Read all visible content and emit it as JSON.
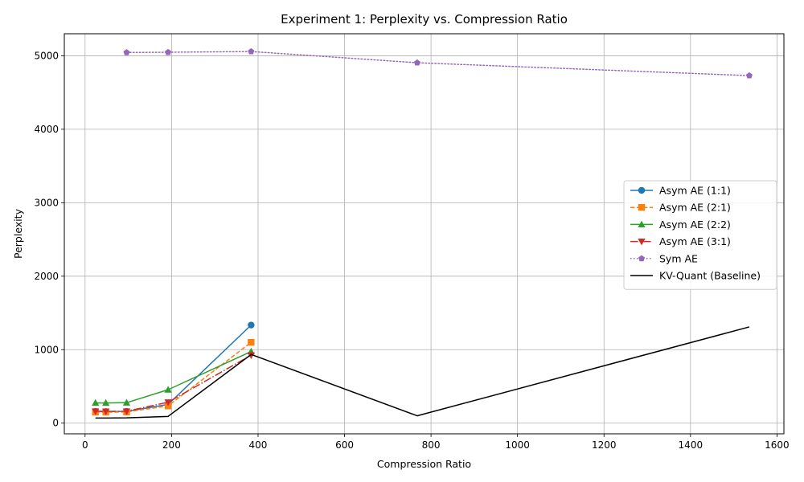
{
  "chart_data": {
    "type": "line",
    "title": "Experiment 1: Perplexity vs. Compression Ratio",
    "xlabel": "Compression Ratio",
    "ylabel": "Perplexity",
    "xlim": [
      -48,
      1616
    ],
    "ylim": [
      -145,
      5300
    ],
    "xticks": [
      0,
      200,
      400,
      600,
      800,
      1000,
      1200,
      1400,
      1600
    ],
    "yticks": [
      0,
      1000,
      2000,
      3000,
      4000,
      5000
    ],
    "grid": true,
    "legend_position": "center-right",
    "series": [
      {
        "name": "Asym AE (1:1)",
        "color": "#1f77b4",
        "line_style": "solid",
        "marker": "circle",
        "x": [
          24,
          48,
          96,
          192,
          384
        ],
        "y": [
          160,
          158,
          160,
          255,
          1335
        ]
      },
      {
        "name": "Asym AE (2:1)",
        "color": "#ff7f0e",
        "line_style": "dashed",
        "marker": "square",
        "x": [
          24,
          48,
          96,
          192,
          384
        ],
        "y": [
          150,
          150,
          152,
          235,
          1100
        ]
      },
      {
        "name": "Asym AE (2:2)",
        "color": "#2ca02c",
        "line_style": "solid",
        "marker": "triangle-up",
        "x": [
          24,
          48,
          96,
          192,
          384
        ],
        "y": [
          275,
          275,
          278,
          455,
          975
        ]
      },
      {
        "name": "Asym AE (3:1)",
        "color": "#d62728",
        "line_style": "dashdot",
        "marker": "triangle-down",
        "x": [
          24,
          48,
          96,
          192,
          384
        ],
        "y": [
          162,
          160,
          162,
          285,
          925
        ]
      },
      {
        "name": "Sym AE",
        "color": "#9467bd",
        "line_style": "dotted",
        "marker": "pentagon",
        "x": [
          96,
          192,
          384,
          768,
          1536
        ],
        "y": [
          5045,
          5048,
          5058,
          4905,
          4730
        ]
      },
      {
        "name": "KV-Quant (Baseline)",
        "color": "#000000",
        "line_style": "solid",
        "marker": "none",
        "x": [
          24,
          48,
          96,
          192,
          384,
          768,
          1536
        ],
        "y": [
          70,
          70,
          72,
          92,
          935,
          100,
          1310
        ]
      }
    ]
  }
}
